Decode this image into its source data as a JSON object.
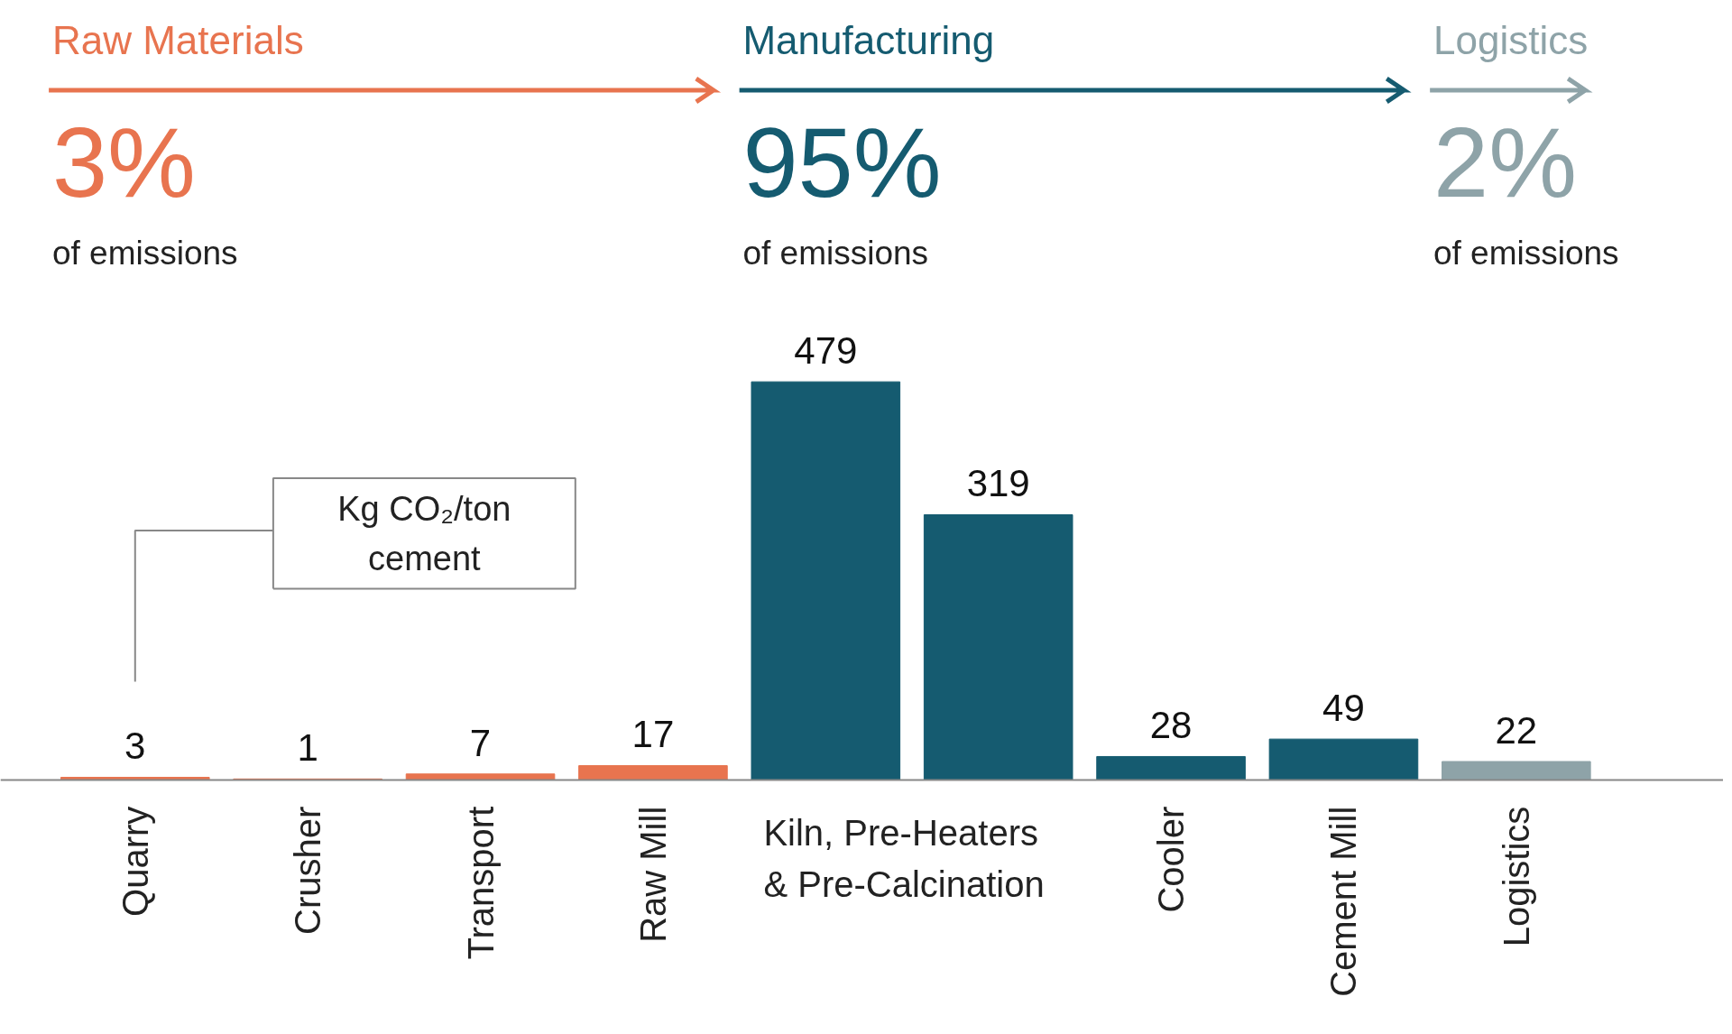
{
  "chart_data": {
    "type": "bar",
    "categories": [
      "Quarry",
      "Crusher",
      "Transport",
      "Raw Mill",
      "Kiln, Pre-Heaters & Pre-Calcination",
      null,
      "Cooler",
      "Cement Mill",
      "Logistics"
    ],
    "values": [
      3,
      1,
      7,
      17,
      479,
      319,
      28,
      49,
      22
    ],
    "colors": [
      "#e8744f",
      "#e8744f",
      "#e8744f",
      "#e8744f",
      "#155b70",
      "#155b70",
      "#155b70",
      "#155b70",
      "#8ea3a8"
    ],
    "data_labels": true,
    "ylabel": "Kg CO₂/ton cement",
    "annotations": [
      "Raw Materials",
      "3%",
      "of emissions",
      "Manufacturing",
      "95%",
      "of emissions",
      "Logistics",
      "2%",
      "of emissions"
    ]
  }
}
